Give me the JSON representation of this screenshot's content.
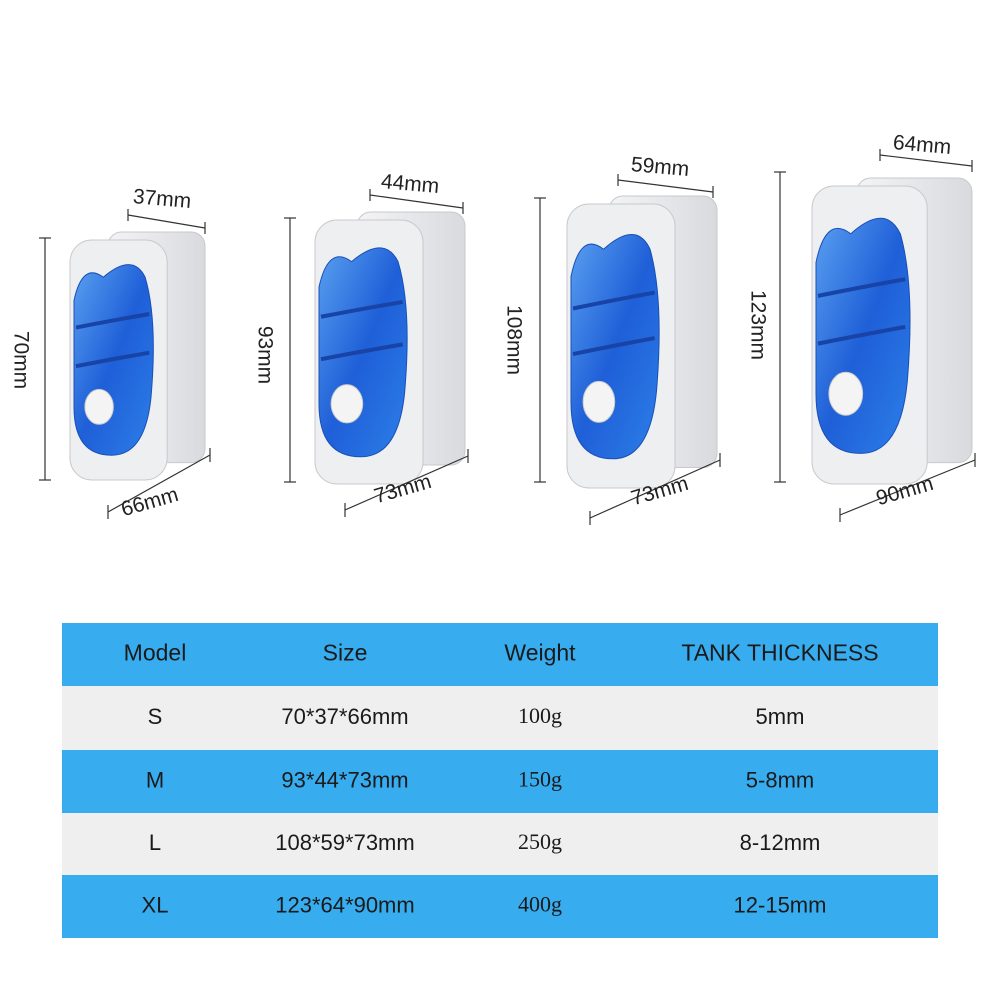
{
  "products": [
    {
      "height": "70mm",
      "top": "37mm",
      "bottom": "66mm"
    },
    {
      "height": "93mm",
      "top": "44mm",
      "bottom": "73mm"
    },
    {
      "height": "108mm",
      "top": "59mm",
      "bottom": "73mm"
    },
    {
      "height": "123mm",
      "top": "64mm",
      "bottom": "90mm"
    }
  ],
  "table": {
    "header": [
      "Model",
      "Size",
      "Weight",
      "TANK THICKNESS"
    ],
    "rows": [
      [
        "S",
        "70*37*66mm",
        "100g",
        "5mm"
      ],
      [
        "M",
        "93*44*73mm",
        "150g",
        "5-8mm"
      ],
      [
        "L",
        "108*59*73mm",
        "250g",
        "8-12mm"
      ],
      [
        "XL",
        "123*64*90mm",
        "400g",
        "12-15mm"
      ]
    ]
  }
}
